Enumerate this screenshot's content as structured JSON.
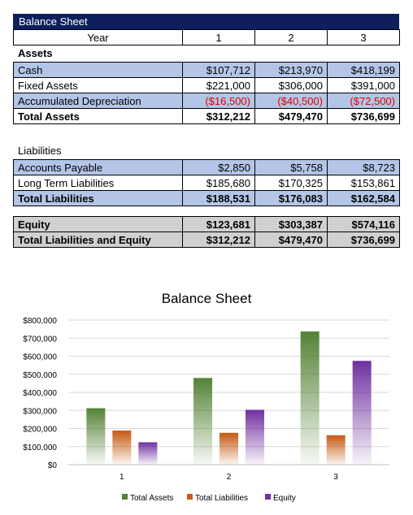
{
  "sheet": {
    "title": "Balance Sheet",
    "year_label": "Year",
    "years": [
      "1",
      "2",
      "3"
    ],
    "assets_heading": "Assets",
    "assets_rows": [
      {
        "label": "Cash",
        "values": [
          "$107,712",
          "$213,970",
          "$418,199"
        ]
      },
      {
        "label": "Fixed Assets",
        "values": [
          "$221,000",
          "$306,000",
          "$391,000"
        ]
      },
      {
        "label": "Accumulated Depreciation",
        "values": [
          "($16,500)",
          "($40,500)",
          "($72,500)"
        ]
      }
    ],
    "total_assets": {
      "label": "Total Assets",
      "values": [
        "$312,212",
        "$479,470",
        "$736,699"
      ]
    },
    "liabilities_heading": "Liabilities",
    "liabilities_rows": [
      {
        "label": "Accounts Payable",
        "values": [
          "$2,850",
          "$5,758",
          "$8,723"
        ]
      },
      {
        "label": "Long Term Liabilities",
        "values": [
          "$185,680",
          "$170,325",
          "$153,861"
        ]
      }
    ],
    "total_liabilities": {
      "label": "Total Liabilities",
      "values": [
        "$188,531",
        "$176,083",
        "$162,584"
      ]
    },
    "equity": {
      "label": "Equity",
      "values": [
        "$123,681",
        "$303,387",
        "$574,116"
      ]
    },
    "total_liab_equity": {
      "label": "Total Liabilities and Equity",
      "values": [
        "$312,212",
        "$479,470",
        "$736,699"
      ]
    }
  },
  "colors": {
    "header_bg": "#0d1f5c",
    "row_blue": "#b4c6e7",
    "row_gray": "#d0d0d0",
    "negative": "#e00000",
    "total_assets": "#548235",
    "total_liabilities": "#c55a11",
    "equity": "#7030a0"
  },
  "chart_data": {
    "type": "bar",
    "title": "Balance Sheet",
    "categories": [
      "1",
      "2",
      "3"
    ],
    "series": [
      {
        "name": "Total Assets",
        "values": [
          312212,
          479470,
          736699
        ],
        "color": "#548235"
      },
      {
        "name": "Total Liabilities",
        "values": [
          188531,
          176083,
          162584
        ],
        "color": "#c55a11"
      },
      {
        "name": "Equity",
        "values": [
          123681,
          303387,
          574116
        ],
        "color": "#7030a0"
      }
    ],
    "ylim": [
      0,
      800000
    ],
    "yticks": [
      0,
      100000,
      200000,
      300000,
      400000,
      500000,
      600000,
      700000,
      800000
    ],
    "ytick_labels": [
      "$0",
      "$100,000",
      "$200,000",
      "$300,000",
      "$400,000",
      "$500,000",
      "$600,000",
      "$700,000",
      "$800,000"
    ],
    "grid": true,
    "legend": "bottom",
    "xlabel": "",
    "ylabel": ""
  }
}
